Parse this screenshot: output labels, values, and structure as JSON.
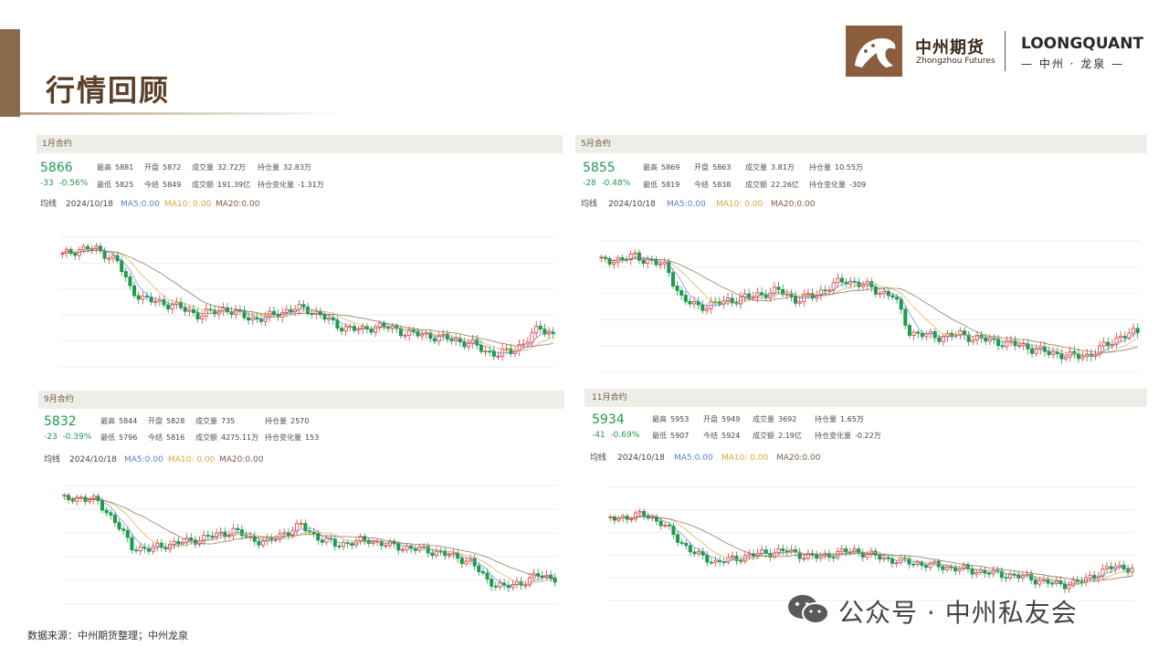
{
  "header": {
    "title": "行情回顾",
    "logo_cn": "中州期货",
    "logo_en": "Zhongzhou Futures",
    "logo_quant": "LOONGQUANT",
    "logo_quant_sub": "— 中州 · 龙泉 —"
  },
  "labels": {
    "high": "最高",
    "low": "最低",
    "open": "开盘",
    "settle": "今结",
    "volume": "成交量",
    "turnover": "成交额",
    "oi": "持仓量",
    "oi_change": "持仓变化量",
    "ma_label": "均线"
  },
  "panels": [
    {
      "title": "1月合约",
      "price": "5866",
      "change": "-33",
      "change_pct": "-0.56%",
      "high": "5881",
      "low": "5825",
      "open": "5872",
      "settle": "5849",
      "volume": "32.72万",
      "turnover": "191.39亿",
      "oi": "32.83万",
      "oi_change": "-1.31万",
      "date": "2024/10/18",
      "ma5": "MA5:0.00",
      "ma10": "MA10: 0.00",
      "ma20": "MA20:0.00"
    },
    {
      "title": "5月合约",
      "price": "5855",
      "change": "-28",
      "change_pct": "-0.48%",
      "high": "5869",
      "low": "5819",
      "open": "5863",
      "settle": "5838",
      "volume": "3.81万",
      "turnover": "22.26亿",
      "oi": "10.55万",
      "oi_change": "-309",
      "date": "2024/10/18",
      "ma5": "MA5:0.00",
      "ma10": "MA10: 0.00",
      "ma20": "MA20:0.00"
    },
    {
      "title": "9月合约",
      "price": "5832",
      "change": "-23",
      "change_pct": "-0.39%",
      "high": "5844",
      "low": "5796",
      "open": "5828",
      "settle": "5816",
      "volume": "735",
      "turnover": "4275.11万",
      "oi": "2570",
      "oi_change": "153",
      "date": "2024/10/18",
      "ma5": "MA5:0.00",
      "ma10": "MA10: 0.00",
      "ma20": "MA20:0.00"
    },
    {
      "title": "11月合约",
      "price": "5934",
      "change": "-41",
      "change_pct": "-0.69%",
      "high": "5953",
      "low": "5907",
      "open": "5949",
      "settle": "5924",
      "volume": "3692",
      "turnover": "2.19亿",
      "oi": "1.65万",
      "oi_change": "-0.22万",
      "date": "2024/10/18",
      "ma5": "MA5:0.00",
      "ma10": "MA10: 0.00",
      "ma20": "MA20:0.00"
    }
  ],
  "footer": {
    "source": "数据来源：中州期货整理；中州龙泉",
    "watermark": "公众号 · 中州私友会"
  },
  "colors": {
    "up": "#e03c3c",
    "down": "#1e9a4c",
    "ma5": "#5b7fd6",
    "ma10": "#e0a23a",
    "ma20": "#7a5a4a",
    "brand": "#8a5e3c"
  },
  "chart_data": [
    {
      "type": "line",
      "profile": [
        0.86,
        0.9,
        0.92,
        0.88,
        0.82,
        0.6,
        0.52,
        0.5,
        0.48,
        0.44,
        0.4,
        0.42,
        0.45,
        0.4,
        0.37,
        0.38,
        0.42,
        0.45,
        0.44,
        0.4,
        0.32,
        0.3,
        0.28,
        0.32,
        0.3,
        0.27,
        0.25,
        0.24,
        0.22,
        0.2,
        0.18,
        0.12,
        0.1,
        0.12,
        0.2,
        0.3,
        0.25
      ]
    },
    {
      "type": "line",
      "profile": [
        0.84,
        0.86,
        0.88,
        0.85,
        0.8,
        0.55,
        0.5,
        0.52,
        0.55,
        0.57,
        0.6,
        0.62,
        0.55,
        0.58,
        0.65,
        0.7,
        0.67,
        0.62,
        0.58,
        0.3,
        0.28,
        0.27,
        0.29,
        0.26,
        0.24,
        0.22,
        0.2,
        0.16,
        0.14,
        0.12,
        0.13,
        0.2,
        0.28,
        0.3
      ]
    },
    {
      "type": "line",
      "profile": [
        0.88,
        0.9,
        0.86,
        0.7,
        0.48,
        0.46,
        0.5,
        0.52,
        0.55,
        0.58,
        0.62,
        0.55,
        0.52,
        0.6,
        0.66,
        0.56,
        0.5,
        0.52,
        0.54,
        0.5,
        0.48,
        0.46,
        0.44,
        0.4,
        0.36,
        0.2,
        0.14,
        0.18,
        0.24,
        0.22
      ]
    },
    {
      "type": "line",
      "profile": [
        0.72,
        0.74,
        0.76,
        0.68,
        0.52,
        0.4,
        0.34,
        0.36,
        0.4,
        0.42,
        0.44,
        0.4,
        0.38,
        0.42,
        0.44,
        0.4,
        0.36,
        0.34,
        0.32,
        0.3,
        0.28,
        0.26,
        0.24,
        0.22,
        0.2,
        0.16,
        0.14,
        0.16,
        0.24,
        0.3,
        0.28
      ]
    }
  ]
}
